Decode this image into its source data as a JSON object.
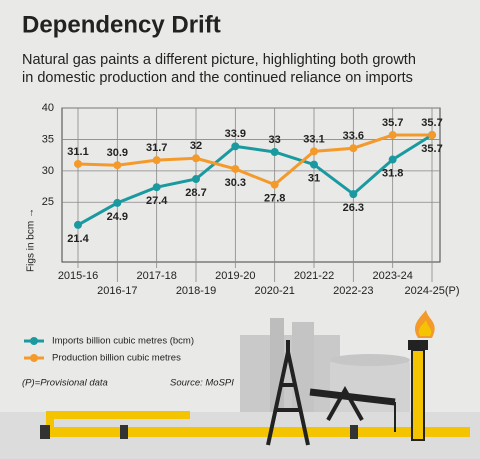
{
  "chart_data": {
    "type": "line",
    "title": "Dependency Drift",
    "subtitle": [
      "Natural gas paints a different picture, highlighting both growth",
      "in domestic production and the continued reliance on imports"
    ],
    "categories": [
      "2015-16",
      "2016-17",
      "2017-18",
      "2018-19",
      "2019-20",
      "2020-21",
      "2021-22",
      "2022-23",
      "2023-24",
      "2024-25(P)"
    ],
    "series": [
      {
        "name": "Imports billion cubic metres (bcm)",
        "color": "#1a9aa0",
        "values": [
          21.4,
          24.9,
          27.4,
          28.7,
          33.9,
          33,
          31,
          26.3,
          31.8,
          35.7
        ]
      },
      {
        "name": "Production billion cubic metres",
        "color": "#f39a2b",
        "values": [
          31.1,
          30.9,
          31.7,
          32,
          30.3,
          27.8,
          33.1,
          33.6,
          35.7,
          35.7
        ]
      }
    ],
    "ylim": [
      15.5,
      40
    ],
    "yticks": [
      25,
      30,
      35,
      40
    ],
    "grid": true,
    "y_label": "Figs in bcm →",
    "note": "(P)=Provisional data",
    "source": "Source: MoSPI"
  }
}
